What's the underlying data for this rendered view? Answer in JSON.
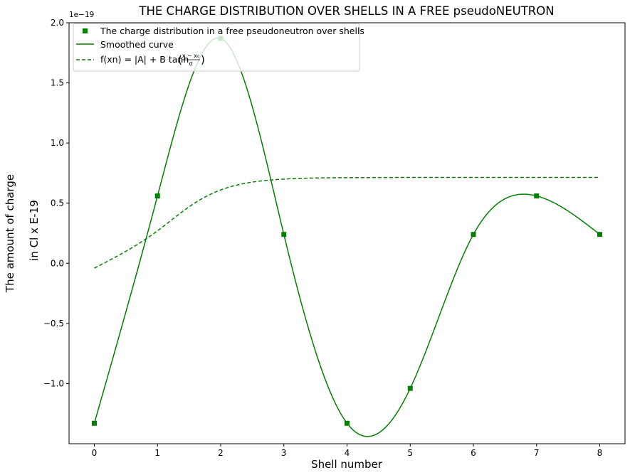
{
  "chart_data": {
    "type": "line",
    "title": "THE CHARGE DISTRIBUTION OVER SHELLS IN A FREE pseudoNEUTRON",
    "xlabel": "Shell number",
    "ylabel_line1": "The amount of charge",
    "ylabel_line2": "in Cl x E-19",
    "y_offset_label": "1e−19",
    "xlim": [
      -0.4,
      8.4
    ],
    "ylim": [
      -1.5,
      2.0
    ],
    "x_ticks": [
      0,
      1,
      2,
      3,
      4,
      5,
      6,
      7,
      8
    ],
    "x_tick_labels": [
      "0",
      "1",
      "2",
      "3",
      "4",
      "5",
      "6",
      "7",
      "8"
    ],
    "y_ticks": [
      -1.0,
      -0.5,
      0.0,
      0.5,
      1.0,
      1.5,
      2.0
    ],
    "y_tick_labels": [
      "−1.0",
      "−0.5",
      "0.0",
      "0.5",
      "1.0",
      "1.5",
      "2.0"
    ],
    "grid": false,
    "legend_position": "upper-left",
    "color": "#008000",
    "series": [
      {
        "name": "The charge distribution in a free pseudoneutron over shells",
        "style": "square-markers",
        "x": [
          0,
          1,
          2,
          3,
          4,
          5,
          6,
          7,
          8
        ],
        "values": [
          -1.33,
          0.56,
          1.87,
          0.24,
          -1.33,
          -1.04,
          0.24,
          0.56,
          0.24
        ]
      },
      {
        "name": "Smoothed curve",
        "style": "solid",
        "x": [
          0,
          1,
          2,
          3,
          4,
          5,
          6,
          7,
          8
        ],
        "values": [
          -1.33,
          0.56,
          1.87,
          0.24,
          -1.33,
          -1.04,
          0.24,
          0.56,
          0.24
        ]
      },
      {
        "name_prefix": "f(xn) = |A| + B tanh",
        "name_frac_num": "x − x₀",
        "name_frac_den": "σ",
        "style": "dashed",
        "function": "tanh",
        "x": [
          0,
          0.5,
          1,
          1.5,
          2,
          2.5,
          3,
          4,
          5,
          6,
          7,
          8
        ],
        "values": [
          -0.04,
          0.1,
          0.27,
          0.47,
          0.61,
          0.675,
          0.7,
          0.712,
          0.714,
          0.714,
          0.714,
          0.714
        ]
      }
    ]
  }
}
